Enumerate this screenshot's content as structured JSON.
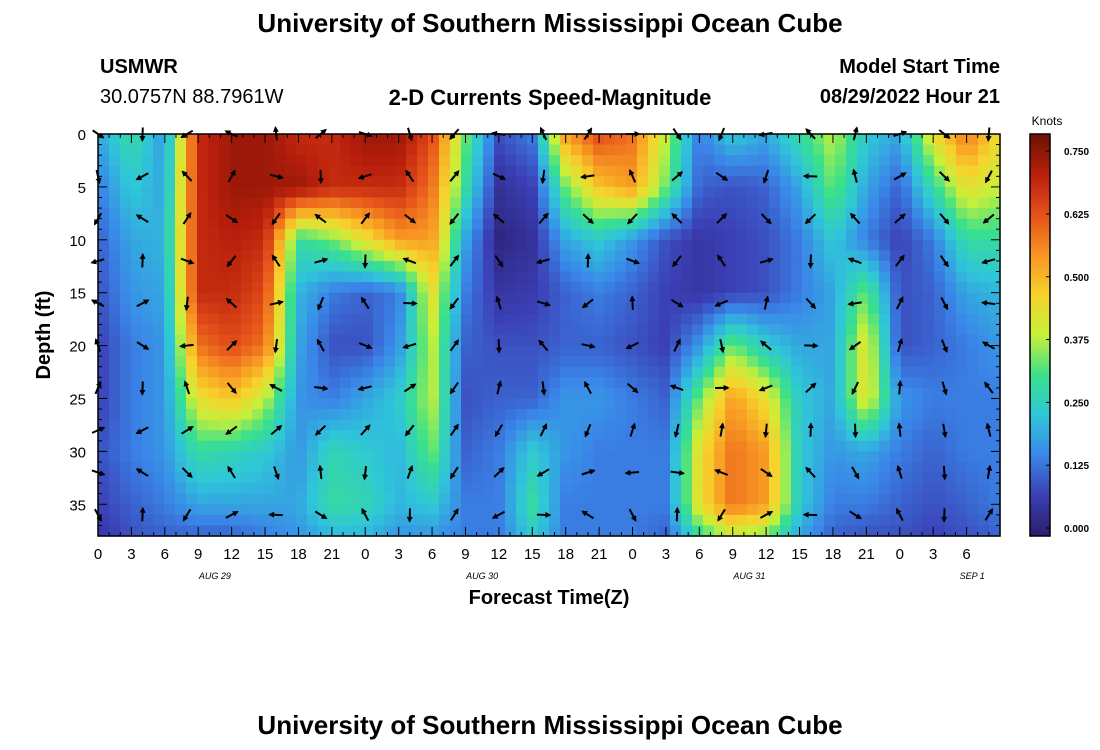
{
  "header": {
    "title": "University of Southern Mississippi Ocean Cube",
    "station": "USMWR",
    "coords": "30.0757N  88.7961W",
    "subtitle": "2-D Currents Speed-Magnitude",
    "model_label": "Model Start Time",
    "model_time": "08/29/2022 Hour 21",
    "bottom_title": "University of Southern Mississippi Ocean Cube"
  },
  "colors": {
    "scale": [
      "#2a1e6e",
      "#3b3fb5",
      "#3a86e8",
      "#2fc6d9",
      "#39e08c",
      "#c6f03a",
      "#f7d22c",
      "#f79522",
      "#e5501a",
      "#b81f0c",
      "#6e1003"
    ],
    "arrow": "#000000"
  },
  "chart_data": {
    "type": "heatmap",
    "title": "2-D Currents Speed-Magnitude",
    "xlabel": "Forecast Time(Z)",
    "ylabel": "Depth (ft)",
    "x_hours": [
      0,
      81
    ],
    "x_tick_labels": [
      "0",
      "3",
      "6",
      "9",
      "12",
      "15",
      "18",
      "21",
      "0",
      "3",
      "6",
      "9",
      "12",
      "15",
      "18",
      "21",
      "0",
      "3",
      "6",
      "9",
      "12",
      "15",
      "18",
      "21",
      "0",
      "3",
      "6"
    ],
    "date_labels": [
      {
        "hour": 10.5,
        "label": "AUG 29"
      },
      {
        "hour": 34.5,
        "label": "AUG 30"
      },
      {
        "hour": 58.5,
        "label": "AUG 31"
      },
      {
        "hour": 78.5,
        "label": "SEP 1"
      }
    ],
    "y_range": [
      0,
      38
    ],
    "y_ticks": [
      0,
      5,
      10,
      15,
      20,
      25,
      30,
      35
    ],
    "colorbar": {
      "label": "Knots",
      "range": [
        0,
        0.8
      ],
      "ticks": [
        "0.000",
        "0.125",
        "0.250",
        "0.375",
        "0.500",
        "0.625",
        "0.750"
      ]
    },
    "speed_grid": {
      "hours": [
        0,
        3,
        6,
        9,
        12,
        15,
        18,
        21,
        24,
        27,
        30,
        33,
        36,
        39,
        42,
        45,
        48,
        51,
        54,
        57,
        60,
        63,
        66,
        69,
        72,
        75,
        78,
        81
      ],
      "depths": [
        0,
        5,
        10,
        15,
        20,
        25,
        30,
        35,
        38
      ],
      "values": [
        [
          0.2,
          0.3,
          0.18,
          0.7,
          0.75,
          0.75,
          0.7,
          0.7,
          0.75,
          0.75,
          0.65,
          0.35,
          0.1,
          0.15,
          0.55,
          0.65,
          0.6,
          0.4,
          0.15,
          0.25,
          0.2,
          0.3,
          0.4,
          0.25,
          0.2,
          0.45,
          0.6,
          0.45
        ],
        [
          0.15,
          0.25,
          0.2,
          0.7,
          0.75,
          0.75,
          0.75,
          0.7,
          0.7,
          0.7,
          0.6,
          0.3,
          0.05,
          0.08,
          0.35,
          0.5,
          0.55,
          0.35,
          0.12,
          0.1,
          0.12,
          0.2,
          0.35,
          0.2,
          0.12,
          0.3,
          0.45,
          0.4
        ],
        [
          0.12,
          0.2,
          0.22,
          0.7,
          0.72,
          0.7,
          0.3,
          0.35,
          0.45,
          0.55,
          0.55,
          0.2,
          0.02,
          0.05,
          0.2,
          0.25,
          0.18,
          0.1,
          0.06,
          0.08,
          0.1,
          0.15,
          0.25,
          0.15,
          0.08,
          0.15,
          0.3,
          0.3
        ],
        [
          0.1,
          0.18,
          0.2,
          0.7,
          0.7,
          0.65,
          0.22,
          0.15,
          0.12,
          0.15,
          0.45,
          0.15,
          0.06,
          0.07,
          0.12,
          0.15,
          0.12,
          0.08,
          0.06,
          0.08,
          0.1,
          0.15,
          0.2,
          0.35,
          0.1,
          0.12,
          0.2,
          0.22
        ],
        [
          0.08,
          0.15,
          0.18,
          0.6,
          0.65,
          0.6,
          0.2,
          0.1,
          0.1,
          0.18,
          0.4,
          0.12,
          0.1,
          0.1,
          0.12,
          0.12,
          0.1,
          0.08,
          0.18,
          0.35,
          0.25,
          0.2,
          0.2,
          0.45,
          0.1,
          0.12,
          0.15,
          0.18
        ],
        [
          0.08,
          0.15,
          0.18,
          0.45,
          0.5,
          0.4,
          0.18,
          0.15,
          0.2,
          0.25,
          0.4,
          0.1,
          0.12,
          0.12,
          0.18,
          0.18,
          0.15,
          0.12,
          0.35,
          0.55,
          0.45,
          0.25,
          0.2,
          0.45,
          0.18,
          0.15,
          0.15,
          0.15
        ],
        [
          0.1,
          0.15,
          0.18,
          0.3,
          0.28,
          0.25,
          0.18,
          0.28,
          0.25,
          0.22,
          0.35,
          0.12,
          0.15,
          0.25,
          0.18,
          0.15,
          0.15,
          0.15,
          0.45,
          0.6,
          0.55,
          0.25,
          0.18,
          0.2,
          0.15,
          0.12,
          0.15,
          0.15
        ],
        [
          0.08,
          0.12,
          0.15,
          0.2,
          0.2,
          0.2,
          0.2,
          0.3,
          0.28,
          0.22,
          0.25,
          0.15,
          0.15,
          0.3,
          0.15,
          0.15,
          0.15,
          0.15,
          0.45,
          0.6,
          0.55,
          0.25,
          0.15,
          0.15,
          0.12,
          0.1,
          0.12,
          0.15
        ],
        [
          0.06,
          0.1,
          0.12,
          0.12,
          0.12,
          0.15,
          0.18,
          0.22,
          0.22,
          0.18,
          0.18,
          0.15,
          0.15,
          0.25,
          0.15,
          0.15,
          0.15,
          0.12,
          0.3,
          0.4,
          0.35,
          0.2,
          0.12,
          0.1,
          0.1,
          0.08,
          0.1,
          0.12
        ]
      ]
    },
    "vector_hours": [
      0,
      4,
      8,
      12,
      16,
      20,
      24,
      28,
      32,
      36,
      40,
      44,
      48,
      52,
      56,
      60,
      64,
      68,
      72,
      76,
      80
    ],
    "vector_depths": [
      0,
      4,
      8,
      12,
      16,
      20,
      24,
      28,
      32,
      36
    ]
  }
}
